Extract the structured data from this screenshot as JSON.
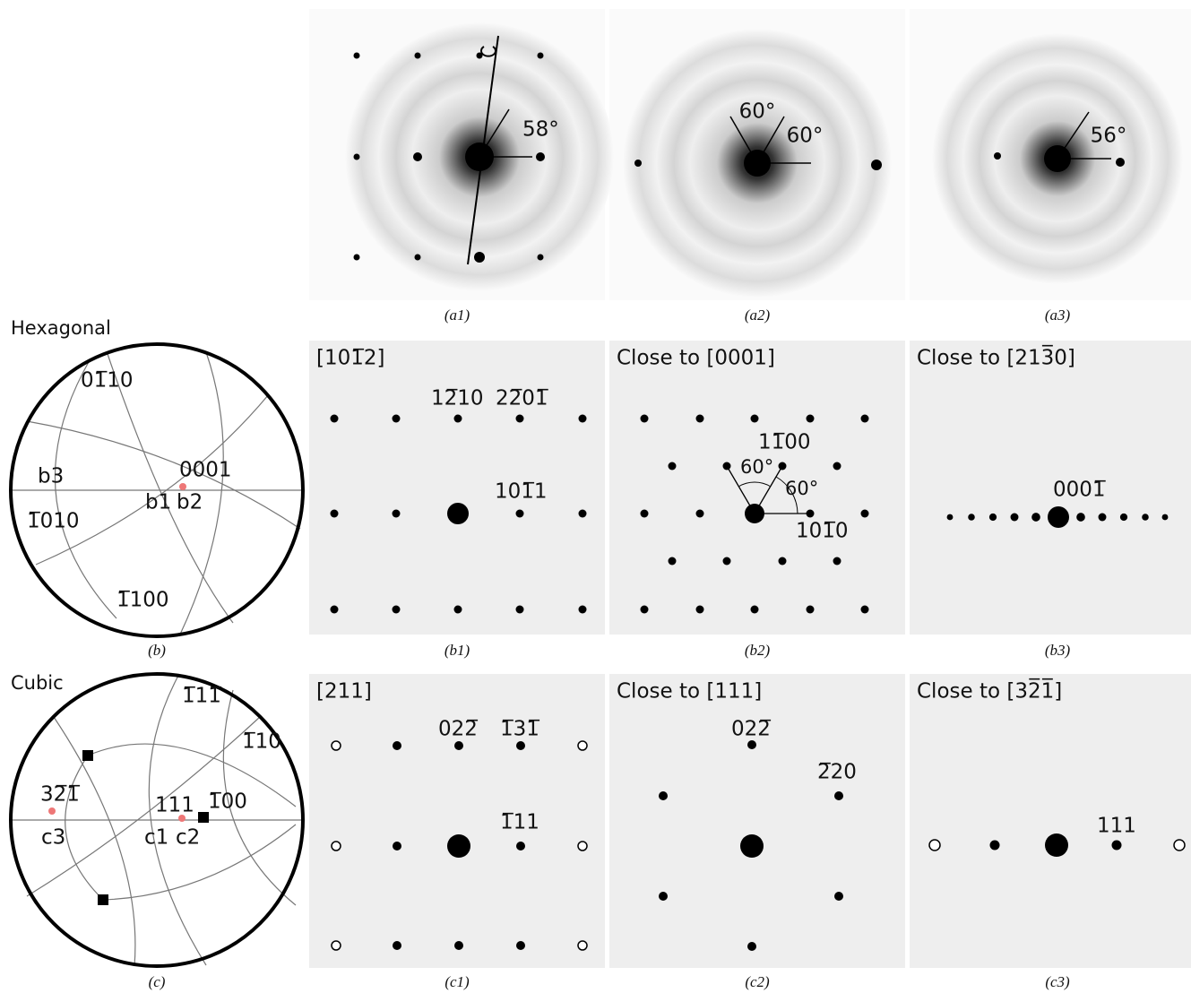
{
  "row_a": {
    "panels": [
      {
        "caption": "(a1)",
        "angles": [
          "58°"
        ]
      },
      {
        "caption": "(a2)",
        "angles": [
          "60°",
          "60°"
        ]
      },
      {
        "caption": "(a3)",
        "angles": [
          "56°"
        ]
      }
    ]
  },
  "hexagonal": {
    "title": "Hexagonal",
    "stereogram": {
      "caption": "(b)",
      "labels": [
        "01̅10",
        "b3",
        "1̅010",
        "b1",
        "b2",
        "0001",
        "1̅100"
      ]
    },
    "panels": [
      {
        "caption": "(b1)",
        "zone": "[101̅2]",
        "labels": [
          "12̅10",
          "22̅01̅",
          "101̅1"
        ]
      },
      {
        "caption": "(b2)",
        "zone": "Close to [0001]",
        "labels": [
          "11̅00",
          "60°",
          "60°",
          "101̅0"
        ]
      },
      {
        "caption": "(b3)",
        "zone": "Close to [213̅0]",
        "labels": [
          "0001̅"
        ]
      }
    ]
  },
  "cubic": {
    "title": "Cubic",
    "stereogram": {
      "caption": "(c)",
      "labels": [
        "1̅11̅",
        "1̅10",
        "32̅1̅",
        "111",
        "1̅00",
        "c3",
        "c1",
        "c2"
      ]
    },
    "panels": [
      {
        "caption": "(c1)",
        "zone": "[211]",
        "labels": [
          "022̅",
          "1̅31̅",
          "1̅11"
        ]
      },
      {
        "caption": "(c2)",
        "zone": "Close to [111]",
        "labels": [
          "022̅",
          "2̅20"
        ]
      },
      {
        "caption": "(c3)",
        "zone": "Close to [32̅1̅]",
        "labels": [
          "111"
        ]
      }
    ]
  }
}
